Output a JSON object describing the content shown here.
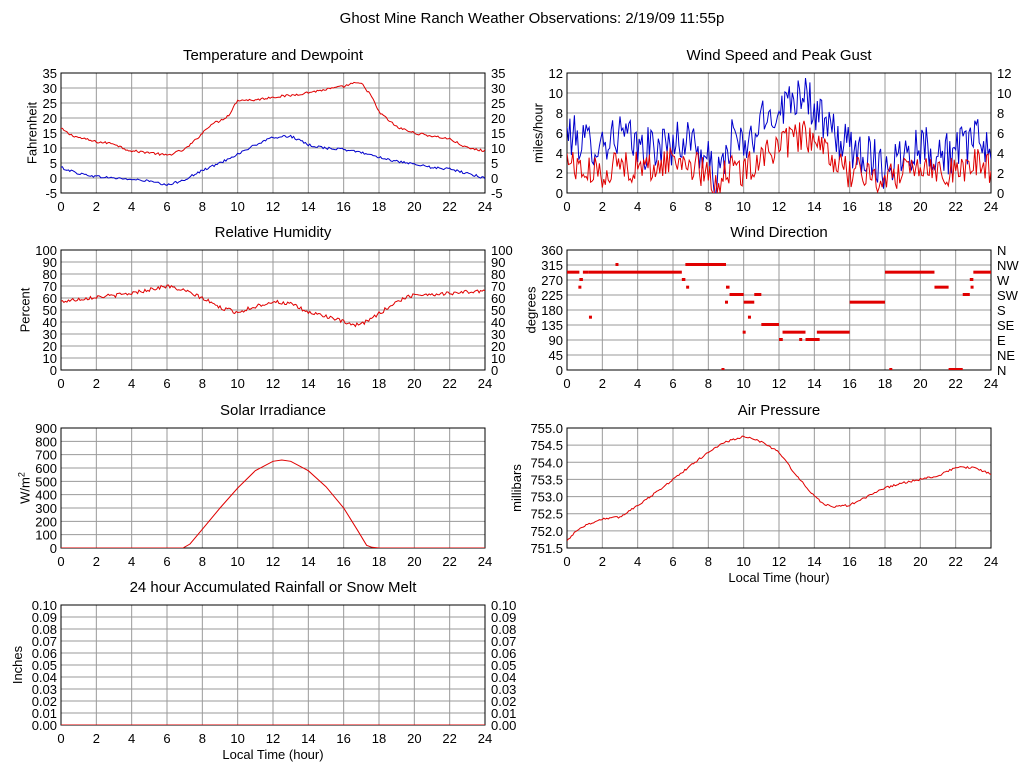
{
  "page_title": "Ghost Mine Ranch Weather Observations: 2/19/09 11:55p",
  "colors": {
    "red": "#e00000",
    "blue": "#0000cc",
    "grid": "#9a9a9a",
    "axis": "#000000"
  },
  "chart_data": [
    {
      "id": "temp",
      "type": "line",
      "title": "Temperature and Dewpoint",
      "xlabel": "",
      "ylabel": "Fahrenheit",
      "xlim": [
        0,
        24
      ],
      "ylim": [
        -5,
        35
      ],
      "xticks": [
        "0",
        "2",
        "4",
        "6",
        "8",
        "10",
        "12",
        "14",
        "16",
        "18",
        "20",
        "22",
        "24"
      ],
      "yticks": [
        "-5",
        "0",
        "5",
        "10",
        "15",
        "20",
        "25",
        "30",
        "35"
      ],
      "right_ticks": true,
      "series": [
        {
          "color": "#e00000",
          "noise": 0.4,
          "points": [
            [
              0,
              16.5
            ],
            [
              0.5,
              14.5
            ],
            [
              1,
              13.5
            ],
            [
              2,
              12
            ],
            [
              3,
              11.5
            ],
            [
              3.5,
              10
            ],
            [
              4,
              9
            ],
            [
              5,
              8.5
            ],
            [
              6,
              7.5
            ],
            [
              7,
              9.5
            ],
            [
              7.5,
              12
            ],
            [
              8,
              15
            ],
            [
              8.5,
              18
            ],
            [
              9,
              19
            ],
            [
              9.5,
              21
            ],
            [
              10,
              26
            ],
            [
              11,
              26
            ],
            [
              12,
              27
            ],
            [
              13,
              27.5
            ],
            [
              14,
              28.5
            ],
            [
              15,
              29.5
            ],
            [
              16,
              30.5
            ],
            [
              16.5,
              31.5
            ],
            [
              17,
              31.5
            ],
            [
              17.5,
              28
            ],
            [
              18,
              22
            ],
            [
              19,
              17
            ],
            [
              20,
              15
            ],
            [
              21,
              14
            ],
            [
              22,
              13
            ],
            [
              23,
              10
            ],
            [
              24,
              9
            ]
          ]
        },
        {
          "color": "#0000cc",
          "noise": 0.4,
          "points": [
            [
              0,
              3.5
            ],
            [
              1,
              1.5
            ],
            [
              2,
              0.5
            ],
            [
              3,
              0
            ],
            [
              4,
              -0.5
            ],
            [
              5,
              -1
            ],
            [
              6,
              -2.5
            ],
            [
              7,
              -0.5
            ],
            [
              8,
              2.5
            ],
            [
              9,
              5
            ],
            [
              10,
              8
            ],
            [
              11,
              11
            ],
            [
              12,
              13.5
            ],
            [
              13,
              14
            ],
            [
              14,
              11
            ],
            [
              15,
              10
            ],
            [
              16,
              9.5
            ],
            [
              17,
              8.5
            ],
            [
              18,
              7
            ],
            [
              19,
              5.5
            ],
            [
              20,
              4.5
            ],
            [
              21,
              3.5
            ],
            [
              22,
              3
            ],
            [
              23,
              1.5
            ],
            [
              24,
              0
            ]
          ]
        }
      ]
    },
    {
      "id": "wind",
      "type": "line",
      "title": "Wind Speed and Peak Gust",
      "xlabel": "",
      "ylabel": "miles/hour",
      "xlim": [
        0,
        24
      ],
      "ylim": [
        0,
        12
      ],
      "xticks": [
        "0",
        "2",
        "4",
        "6",
        "8",
        "10",
        "12",
        "14",
        "16",
        "18",
        "20",
        "22",
        "24"
      ],
      "yticks": [
        "0",
        "2",
        "4",
        "6",
        "8",
        "10",
        "12"
      ],
      "right_ticks": true,
      "series": [
        {
          "color": "#0000cc",
          "noise": 2.2,
          "points": [
            [
              0,
              6
            ],
            [
              1,
              5
            ],
            [
              2,
              5
            ],
            [
              3,
              6
            ],
            [
              4,
              4.5
            ],
            [
              5,
              4.5
            ],
            [
              6,
              5
            ],
            [
              7,
              5.5
            ],
            [
              8,
              3
            ],
            [
              8.5,
              1
            ],
            [
              9,
              4
            ],
            [
              9.5,
              6
            ],
            [
              10,
              4
            ],
            [
              11,
              7
            ],
            [
              12,
              8.5
            ],
            [
              13,
              10
            ],
            [
              13.5,
              10.5
            ],
            [
              14,
              8
            ],
            [
              15,
              6
            ],
            [
              16,
              4.5
            ],
            [
              17,
              4
            ],
            [
              18,
              2.5
            ],
            [
              19,
              4
            ],
            [
              20,
              5
            ],
            [
              21,
              4
            ],
            [
              22,
              4
            ],
            [
              23,
              5.5
            ],
            [
              24,
              4.5
            ]
          ]
        },
        {
          "color": "#e00000",
          "noise": 1.6,
          "points": [
            [
              0,
              3.5
            ],
            [
              1,
              2
            ],
            [
              2,
              2
            ],
            [
              3,
              3
            ],
            [
              4,
              2.5
            ],
            [
              5,
              2.5
            ],
            [
              6,
              3.5
            ],
            [
              7,
              3
            ],
            [
              8,
              1.5
            ],
            [
              8.5,
              0.5
            ],
            [
              9,
              2.5
            ],
            [
              10,
              2
            ],
            [
              11,
              4
            ],
            [
              12,
              4.5
            ],
            [
              13,
              5.5
            ],
            [
              13.5,
              6
            ],
            [
              14,
              4.5
            ],
            [
              15,
              3.5
            ],
            [
              16,
              2
            ],
            [
              17,
              2
            ],
            [
              18,
              1
            ],
            [
              19,
              2.5
            ],
            [
              20,
              3
            ],
            [
              21,
              2.5
            ],
            [
              22,
              2
            ],
            [
              23,
              3
            ],
            [
              24,
              2.5
            ]
          ]
        }
      ]
    },
    {
      "id": "rh",
      "type": "line",
      "title": "Relative Humidity",
      "xlabel": "",
      "ylabel": "Percent",
      "xlim": [
        0,
        24
      ],
      "ylim": [
        0,
        100
      ],
      "xticks": [
        "0",
        "2",
        "4",
        "6",
        "8",
        "10",
        "12",
        "14",
        "16",
        "18",
        "20",
        "22",
        "24"
      ],
      "yticks": [
        "0",
        "10",
        "20",
        "30",
        "40",
        "50",
        "60",
        "70",
        "80",
        "90",
        "100"
      ],
      "right_ticks": true,
      "series": [
        {
          "color": "#e00000",
          "noise": 1.6,
          "points": [
            [
              0,
              57
            ],
            [
              1,
              59
            ],
            [
              2,
              61
            ],
            [
              3,
              62
            ],
            [
              4,
              64
            ],
            [
              5,
              67
            ],
            [
              6,
              70
            ],
            [
              7,
              66
            ],
            [
              8,
              60
            ],
            [
              9,
              52
            ],
            [
              10,
              48
            ],
            [
              11,
              53
            ],
            [
              12,
              57
            ],
            [
              13,
              55
            ],
            [
              14,
              48
            ],
            [
              15,
              45
            ],
            [
              16,
              40
            ],
            [
              16.5,
              37
            ],
            [
              17,
              38
            ],
            [
              18,
              47
            ],
            [
              19,
              57
            ],
            [
              20,
              63
            ],
            [
              21,
              63
            ],
            [
              22,
              64
            ],
            [
              23,
              65
            ],
            [
              24,
              66
            ]
          ]
        }
      ]
    },
    {
      "id": "dir",
      "type": "scatter",
      "title": "Wind Direction",
      "xlabel": "",
      "ylabel": "degrees",
      "xlim": [
        0,
        24
      ],
      "ylim": [
        0,
        360
      ],
      "xticks": [
        "0",
        "2",
        "4",
        "6",
        "8",
        "10",
        "12",
        "14",
        "16",
        "18",
        "20",
        "22",
        "24"
      ],
      "yticks": [
        "0",
        "45",
        "90",
        "135",
        "180",
        "225",
        "270",
        "315",
        "360"
      ],
      "right_labels": [
        "N",
        "NE",
        "E",
        "SE",
        "S",
        "SW",
        "W",
        "NW",
        "N"
      ],
      "color": "#e00000",
      "segments": [
        [
          0,
          0.7,
          292
        ],
        [
          0.7,
          0.9,
          270
        ],
        [
          0.9,
          1.2,
          292
        ],
        [
          1.2,
          6.5,
          292
        ],
        [
          6.5,
          6.7,
          270
        ],
        [
          6.7,
          9,
          315
        ],
        [
          9,
          9.2,
          247
        ],
        [
          9.2,
          10,
          225
        ],
        [
          10,
          10.6,
          202
        ],
        [
          10.6,
          11,
          225
        ],
        [
          11,
          12,
          135
        ],
        [
          12,
          12.2,
          90
        ],
        [
          12.2,
          13.5,
          112
        ],
        [
          13.5,
          14.3,
          90
        ],
        [
          14.3,
          16,
          112
        ],
        [
          16,
          18,
          202
        ],
        [
          18,
          20.8,
          292
        ],
        [
          20.8,
          21.6,
          247
        ],
        [
          21.6,
          22.4,
          0
        ],
        [
          22.4,
          22.8,
          225
        ],
        [
          22.8,
          23,
          270
        ],
        [
          23,
          24,
          292
        ]
      ],
      "points": [
        [
          0.7,
          247
        ],
        [
          1.3,
          157
        ],
        [
          2.8,
          315
        ],
        [
          6.8,
          247
        ],
        [
          8.8,
          0
        ],
        [
          9,
          202
        ],
        [
          10,
          112
        ],
        [
          10.3,
          157
        ],
        [
          11.5,
          135
        ],
        [
          12.1,
          90
        ],
        [
          13.2,
          90
        ],
        [
          14.2,
          112
        ],
        [
          18.3,
          0
        ],
        [
          22.9,
          247
        ]
      ]
    },
    {
      "id": "solar",
      "type": "line",
      "title": "Solar Irradiance",
      "xlabel": "",
      "ylabel": "W/m",
      "ylabel_sup": "2",
      "xlim": [
        0,
        24
      ],
      "ylim": [
        0,
        900
      ],
      "xticks": [
        "0",
        "2",
        "4",
        "6",
        "8",
        "10",
        "12",
        "14",
        "16",
        "18",
        "20",
        "22",
        "24"
      ],
      "yticks": [
        "0",
        "100",
        "200",
        "300",
        "400",
        "500",
        "600",
        "700",
        "800",
        "900"
      ],
      "right_ticks": false,
      "series": [
        {
          "color": "#e00000",
          "noise": 0,
          "points": [
            [
              0,
              0
            ],
            [
              6.9,
              0
            ],
            [
              7.3,
              30
            ],
            [
              8,
              140
            ],
            [
              9,
              300
            ],
            [
              10,
              450
            ],
            [
              11,
              580
            ],
            [
              12,
              650
            ],
            [
              12.5,
              660
            ],
            [
              13,
              650
            ],
            [
              14,
              580
            ],
            [
              15,
              460
            ],
            [
              16,
              300
            ],
            [
              16.8,
              130
            ],
            [
              17.3,
              20
            ],
            [
              17.6,
              5
            ],
            [
              18,
              0
            ],
            [
              24,
              0
            ]
          ]
        }
      ]
    },
    {
      "id": "pres",
      "type": "line",
      "title": "Air Pressure",
      "xlabel": "Local Time (hour)",
      "ylabel": "millibars",
      "xlim": [
        0,
        24
      ],
      "ylim": [
        751.5,
        755.0
      ],
      "xticks": [
        "0",
        "2",
        "4",
        "6",
        "8",
        "10",
        "12",
        "14",
        "16",
        "18",
        "20",
        "22",
        "24"
      ],
      "yticks": [
        "751.5",
        "752.0",
        "752.5",
        "753.0",
        "753.5",
        "754.0",
        "754.5",
        "755.0"
      ],
      "right_ticks": false,
      "series": [
        {
          "color": "#e00000",
          "noise": 0.03,
          "points": [
            [
              0,
              751.7
            ],
            [
              0.5,
              752.0
            ],
            [
              1,
              752.15
            ],
            [
              2,
              752.35
            ],
            [
              3,
              752.4
            ],
            [
              4,
              752.75
            ],
            [
              5,
              753.1
            ],
            [
              6,
              753.5
            ],
            [
              7,
              753.9
            ],
            [
              8,
              754.3
            ],
            [
              9,
              754.6
            ],
            [
              10,
              754.75
            ],
            [
              11,
              754.6
            ],
            [
              12,
              754.3
            ],
            [
              13,
              753.6
            ],
            [
              14,
              753.0
            ],
            [
              14.5,
              752.8
            ],
            [
              15,
              752.7
            ],
            [
              16,
              752.75
            ],
            [
              17,
              753.0
            ],
            [
              18,
              753.25
            ],
            [
              19,
              753.4
            ],
            [
              20,
              753.5
            ],
            [
              21,
              753.6
            ],
            [
              22,
              753.85
            ],
            [
              23,
              753.85
            ],
            [
              24,
              753.65
            ]
          ]
        }
      ]
    },
    {
      "id": "rain",
      "type": "line",
      "title": "24 hour Accumulated Rainfall or Snow Melt",
      "xlabel": "Local Time (hour)",
      "ylabel": "Inches",
      "xlim": [
        0,
        24
      ],
      "ylim": [
        0,
        0.1
      ],
      "xticks": [
        "0",
        "2",
        "4",
        "6",
        "8",
        "10",
        "12",
        "14",
        "16",
        "18",
        "20",
        "22",
        "24"
      ],
      "yticks": [
        "0.00",
        "0.01",
        "0.02",
        "0.03",
        "0.04",
        "0.05",
        "0.06",
        "0.07",
        "0.08",
        "0.09",
        "0.10"
      ],
      "right_ticks": true,
      "series": [
        {
          "color": "#e00000",
          "noise": 0,
          "points": [
            [
              0,
              0
            ],
            [
              24,
              0
            ]
          ]
        }
      ]
    }
  ]
}
